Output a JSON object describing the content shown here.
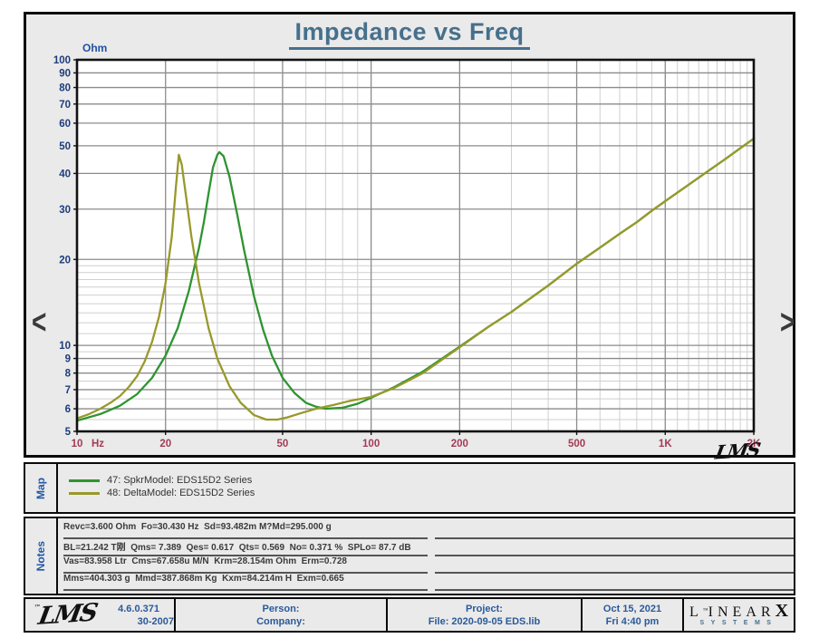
{
  "header": {
    "title": "Impedance vs Freq"
  },
  "nav": {
    "prev_label": "<",
    "next_label": ">"
  },
  "plot": {
    "signature": "LMS",
    "tm": "™"
  },
  "chart_data": {
    "type": "line",
    "title": "Impedance vs Freq",
    "xlabel": "Hz",
    "ylabel": "Ohm",
    "x_scale": "log",
    "y_scale": "log",
    "xlim": [
      10,
      2000
    ],
    "ylim": [
      5,
      100
    ],
    "grid": true,
    "x_ticks": [
      10,
      20,
      50,
      100,
      200,
      500,
      1000,
      2000
    ],
    "x_tick_labels": [
      "10",
      "20",
      "50",
      "100",
      "200",
      "500",
      "1K",
      "2K"
    ],
    "y_ticks": [
      5,
      6,
      7,
      8,
      9,
      10,
      20,
      30,
      40,
      50,
      60,
      70,
      80,
      90,
      100
    ],
    "y_tick_labels": [
      "5",
      "6",
      "7",
      "8",
      "9",
      "10",
      "20",
      "30",
      "40",
      "50",
      "60",
      "70",
      "80",
      "90",
      "100"
    ],
    "minor_x": [
      30,
      40,
      60,
      70,
      80,
      90,
      300,
      400,
      600,
      700,
      800,
      900,
      1100,
      1200,
      1300,
      1400,
      1500,
      1600,
      1700,
      1800,
      1900
    ],
    "minor_y": [
      5.5,
      6.5,
      7.5,
      8.5,
      9.5,
      11,
      12,
      13,
      14,
      15,
      16,
      17,
      18,
      19
    ],
    "series": [
      {
        "name": "47: SpkrModel: EDS15D2 Series",
        "color": "#2e9430",
        "points": [
          [
            10,
            5.45
          ],
          [
            12,
            5.75
          ],
          [
            14,
            6.15
          ],
          [
            16,
            6.75
          ],
          [
            18,
            7.7
          ],
          [
            20,
            9.2
          ],
          [
            22,
            11.5
          ],
          [
            24,
            15.5
          ],
          [
            26,
            22
          ],
          [
            27,
            27
          ],
          [
            28,
            34
          ],
          [
            29,
            42
          ],
          [
            30,
            46.5
          ],
          [
            30.5,
            47.5
          ],
          [
            31.5,
            46
          ],
          [
            33,
            39
          ],
          [
            35,
            29
          ],
          [
            37,
            21.5
          ],
          [
            40,
            14.8
          ],
          [
            43,
            11.3
          ],
          [
            46,
            9.2
          ],
          [
            50,
            7.7
          ],
          [
            55,
            6.8
          ],
          [
            60,
            6.3
          ],
          [
            65,
            6.1
          ],
          [
            70,
            6.0
          ],
          [
            80,
            6.05
          ],
          [
            90,
            6.25
          ],
          [
            100,
            6.55
          ],
          [
            120,
            7.15
          ],
          [
            150,
            8.1
          ],
          [
            200,
            9.9
          ],
          [
            250,
            11.6
          ],
          [
            300,
            13.1
          ],
          [
            400,
            16.2
          ],
          [
            500,
            19.3
          ],
          [
            600,
            22
          ],
          [
            700,
            24.6
          ],
          [
            800,
            27
          ],
          [
            900,
            29.6
          ],
          [
            1000,
            32
          ],
          [
            1200,
            36.5
          ],
          [
            1400,
            40.8
          ],
          [
            1600,
            44.9
          ],
          [
            1800,
            49
          ],
          [
            2000,
            53
          ]
        ]
      },
      {
        "name": "48: DeltaModel: EDS15D2 Series",
        "color": "#98992b",
        "points": [
          [
            10,
            5.55
          ],
          [
            11,
            5.75
          ],
          [
            12,
            6.0
          ],
          [
            13,
            6.3
          ],
          [
            14,
            6.65
          ],
          [
            15,
            7.15
          ],
          [
            16,
            7.8
          ],
          [
            17,
            8.8
          ],
          [
            18,
            10.3
          ],
          [
            19,
            12.6
          ],
          [
            20,
            16.5
          ],
          [
            21,
            24
          ],
          [
            21.7,
            36
          ],
          [
            22.2,
            46.5
          ],
          [
            22.7,
            43
          ],
          [
            23.5,
            33
          ],
          [
            24.5,
            24
          ],
          [
            26,
            16.5
          ],
          [
            28,
            11.5
          ],
          [
            30,
            9.0
          ],
          [
            33,
            7.2
          ],
          [
            36,
            6.3
          ],
          [
            40,
            5.7
          ],
          [
            44,
            5.5
          ],
          [
            48,
            5.5
          ],
          [
            52,
            5.6
          ],
          [
            58,
            5.8
          ],
          [
            65,
            6.0
          ],
          [
            75,
            6.2
          ],
          [
            85,
            6.4
          ],
          [
            100,
            6.6
          ],
          [
            120,
            7.1
          ],
          [
            150,
            8.0
          ],
          [
            200,
            9.85
          ],
          [
            250,
            11.6
          ],
          [
            300,
            13.1
          ],
          [
            400,
            16.2
          ],
          [
            500,
            19.3
          ],
          [
            600,
            22
          ],
          [
            700,
            24.6
          ],
          [
            800,
            27
          ],
          [
            900,
            29.6
          ],
          [
            1000,
            32
          ],
          [
            1200,
            36.5
          ],
          [
            1400,
            40.8
          ],
          [
            1600,
            44.9
          ],
          [
            1800,
            49
          ],
          [
            2000,
            53
          ]
        ]
      }
    ],
    "colors": {
      "title": "#46708c",
      "y_tick_text": "#1c3d7c",
      "x_tick_text": "#a33b55",
      "grid_major": "#8c8c8c",
      "grid_minor": "#cfcfcf",
      "frame": "#111111"
    }
  },
  "map": {
    "label": "Map",
    "items": [
      {
        "label": "47: SpkrModel: EDS15D2 Series"
      },
      {
        "label": "48: DeltaModel: EDS15D2 Series"
      }
    ]
  },
  "notes": {
    "label": "Notes",
    "lines": [
      "Revc=3.600 Ohm  Fo=30.430 Hz  Sd=93.482m M?Md=295.000 g",
      "BL=21.242 T刚  Qms= 7.389  Qes= 0.617  Qts= 0.569  No= 0.371 %  SPLo= 87.7 dB",
      "Vas=83.958 Ltr  Cms=67.658u M/N  Krm=28.154m Ohm  Erm=0.728",
      "Mms=404.303 g  Mmd=387.868m Kg  Kxm=84.214m H  Exm=0.665"
    ],
    "blank_line_count": 4
  },
  "footer": {
    "lms_logo": "LMS",
    "tm": "™",
    "version": "4.6.0.371",
    "build": "30-2007",
    "person_label": "Person:",
    "company_label": "Company:",
    "project_label": "Project:",
    "file_label": "File: 2020-09-05 EDS.lib",
    "date": "Oct 15, 2021",
    "time": "Fri  4:40 pm",
    "logo": {
      "linear": "LINEAR",
      "x": "X",
      "systems": "SYSTEMS"
    }
  }
}
